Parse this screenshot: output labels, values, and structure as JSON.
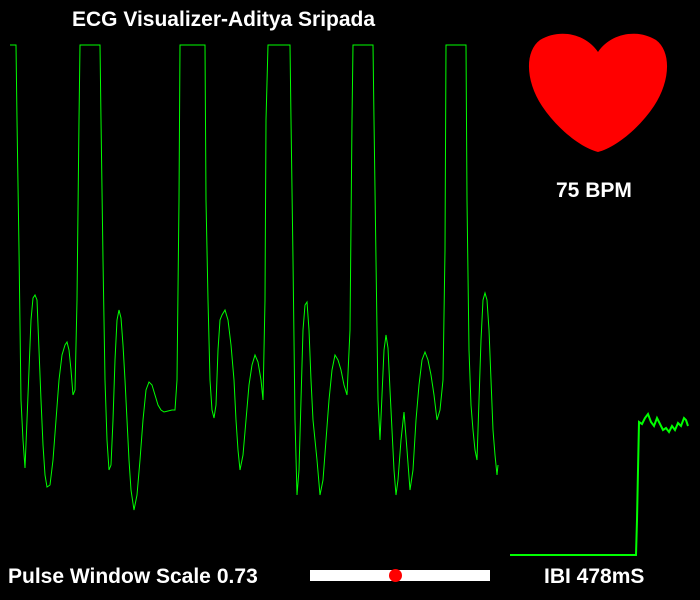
{
  "app": {
    "title": "ECG Visualizer-Aditya Sripada"
  },
  "heart": {
    "bpm_text": "75 BPM",
    "color": "#ff0000",
    "icon": "heart-icon"
  },
  "ibi": {
    "text": "IBI 478mS"
  },
  "pulse_window_scale": {
    "label": "Pulse Window Scale",
    "value_text": "0.73",
    "slider_fraction": 0.47,
    "knob_color": "#ff0000",
    "track_color": "#ffffff"
  },
  "colors": {
    "background": "#000000",
    "waveform": "#00ff00",
    "text": "#ffffff"
  }
}
